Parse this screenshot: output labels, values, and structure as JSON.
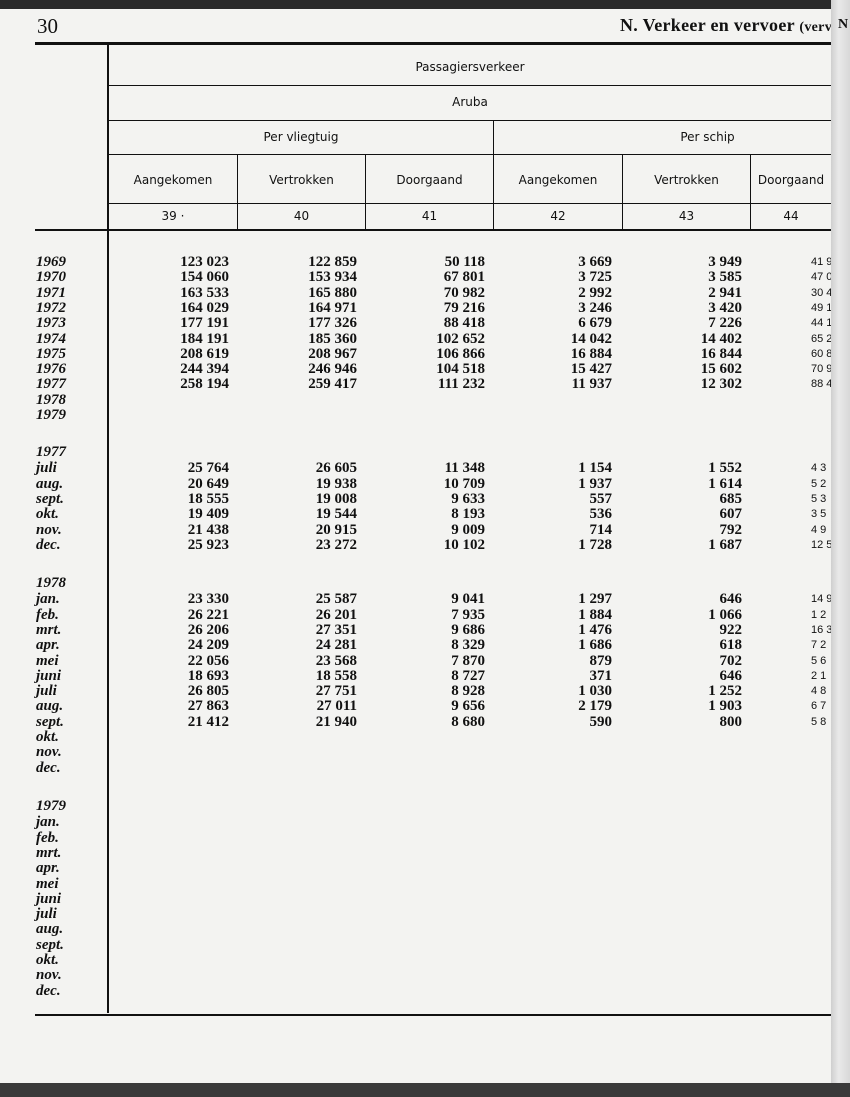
{
  "page_number": "30",
  "section_title": "N.  Verkeer en vervoer",
  "section_title_suffix": "(vervo",
  "next_page_fragment": "N",
  "header": {
    "group": "Passagiersverkeer",
    "island": "Aruba",
    "mode_air": "Per vliegtuig",
    "mode_sea": "Per schip",
    "columns": [
      "Aangekomen",
      "Vertrokken",
      "Doorgaand",
      "Aangekomen",
      "Vertrokken",
      "Doorgaand"
    ],
    "column_numbers": [
      "39 ·",
      "40",
      "41",
      "42",
      "43",
      "44"
    ]
  },
  "sections": [
    {
      "label": "",
      "rows": [
        {
          "label": "1969",
          "values": [
            "123 023",
            "122 859",
            "50 118",
            "3 669",
            "3 949",
            "41 9"
          ]
        },
        {
          "label": "1970",
          "values": [
            "154 060",
            "153 934",
            "67 801",
            "3 725",
            "3 585",
            "47 0"
          ]
        },
        {
          "label": "1971",
          "values": [
            "163 533",
            "165 880",
            "70 982",
            "2 992",
            "2 941",
            "30 4"
          ]
        },
        {
          "label": "1972",
          "values": [
            "164 029",
            "164 971",
            "79 216",
            "3 246",
            "3 420",
            "49 1"
          ]
        },
        {
          "label": "1973",
          "values": [
            "177 191",
            "177 326",
            "88 418",
            "6 679",
            "7 226",
            "44 1"
          ]
        },
        {
          "label": "1974",
          "values": [
            "184 191",
            "185 360",
            "102 652",
            "14 042",
            "14 402",
            "65 2"
          ]
        },
        {
          "label": "1975",
          "values": [
            "208 619",
            "208 967",
            "106 866",
            "16 884",
            "16 844",
            "60 8"
          ]
        },
        {
          "label": "1976",
          "values": [
            "244 394",
            "246 946",
            "104 518",
            "15 427",
            "15 602",
            "70 9"
          ]
        },
        {
          "label": "1977",
          "values": [
            "258 194",
            "259 417",
            "111 232",
            "11 937",
            "12 302",
            "88 4"
          ]
        },
        {
          "label": "1978",
          "values": [
            "",
            "",
            "",
            "",
            "",
            ""
          ]
        },
        {
          "label": "1979",
          "values": [
            "",
            "",
            "",
            "",
            "",
            ""
          ]
        }
      ]
    },
    {
      "label": "1977",
      "rows": [
        {
          "label": "juli",
          "values": [
            "25 764",
            "26 605",
            "11 348",
            "1 154",
            "1 552",
            "4 3"
          ]
        },
        {
          "label": "aug.",
          "values": [
            "20 649",
            "19 938",
            "10 709",
            "1 937",
            "1 614",
            "5 2"
          ]
        },
        {
          "label": "sept.",
          "values": [
            "18 555",
            "19 008",
            "9 633",
            "557",
            "685",
            "5 3"
          ]
        },
        {
          "label": "okt.",
          "values": [
            "19 409",
            "19 544",
            "8 193",
            "536",
            "607",
            "3 5"
          ]
        },
        {
          "label": "nov.",
          "values": [
            "21 438",
            "20 915",
            "9 009",
            "714",
            "792",
            "4 9"
          ]
        },
        {
          "label": "dec.",
          "values": [
            "25 923",
            "23 272",
            "10 102",
            "1 728",
            "1 687",
            "12 5"
          ]
        }
      ]
    },
    {
      "label": "1978",
      "rows": [
        {
          "label": "jan.",
          "values": [
            "23 330",
            "25 587",
            "9 041",
            "1 297",
            "646",
            "14 9"
          ]
        },
        {
          "label": "feb.",
          "values": [
            "26 221",
            "26 201",
            "7 935",
            "1 884",
            "1 066",
            "1 2"
          ]
        },
        {
          "label": "mrt.",
          "values": [
            "26 206",
            "27 351",
            "9 686",
            "1 476",
            "922",
            "16 3"
          ]
        },
        {
          "label": "apr.",
          "values": [
            "24 209",
            "24 281",
            "8 329",
            "1 686",
            "618",
            "7 2"
          ]
        },
        {
          "label": "mei",
          "values": [
            "22 056",
            "23 568",
            "7 870",
            "879",
            "702",
            "5 6"
          ]
        },
        {
          "label": "juni",
          "values": [
            "18 693",
            "18 558",
            "8 727",
            "371",
            "646",
            "2 1"
          ]
        },
        {
          "label": "juli",
          "values": [
            "26 805",
            "27 751",
            "8 928",
            "1 030",
            "1 252",
            "4 8"
          ]
        },
        {
          "label": "aug.",
          "values": [
            "27 863",
            "27 011",
            "9 656",
            "2 179",
            "1 903",
            "6 7"
          ]
        },
        {
          "label": "sept.",
          "values": [
            "21 412",
            "21 940",
            "8 680",
            "590",
            "800",
            "5 8"
          ]
        },
        {
          "label": "okt.",
          "values": [
            "",
            "",
            "",
            "",
            "",
            ""
          ]
        },
        {
          "label": "nov.",
          "values": [
            "",
            "",
            "",
            "",
            "",
            ""
          ]
        },
        {
          "label": "dec.",
          "values": [
            "",
            "",
            "",
            "",
            "",
            ""
          ]
        }
      ]
    },
    {
      "label": "1979",
      "rows": [
        {
          "label": "jan.",
          "values": [
            "",
            "",
            "",
            "",
            "",
            ""
          ]
        },
        {
          "label": "feb.",
          "values": [
            "",
            "",
            "",
            "",
            "",
            ""
          ]
        },
        {
          "label": "mrt.",
          "values": [
            "",
            "",
            "",
            "",
            "",
            ""
          ]
        },
        {
          "label": "apr.",
          "values": [
            "",
            "",
            "",
            "",
            "",
            ""
          ]
        },
        {
          "label": "mei",
          "values": [
            "",
            "",
            "",
            "",
            "",
            ""
          ]
        },
        {
          "label": "juni",
          "values": [
            "",
            "",
            "",
            "",
            "",
            ""
          ]
        },
        {
          "label": "juli",
          "values": [
            "",
            "",
            "",
            "",
            "",
            ""
          ]
        },
        {
          "label": "aug.",
          "values": [
            "",
            "",
            "",
            "",
            "",
            ""
          ]
        },
        {
          "label": "sept.",
          "values": [
            "",
            "",
            "",
            "",
            "",
            ""
          ]
        },
        {
          "label": "okt.",
          "values": [
            "",
            "",
            "",
            "",
            "",
            ""
          ]
        },
        {
          "label": "nov.",
          "values": [
            "",
            "",
            "",
            "",
            "",
            ""
          ]
        },
        {
          "label": "dec.",
          "values": [
            "",
            "",
            "",
            "",
            "",
            ""
          ]
        }
      ]
    }
  ]
}
